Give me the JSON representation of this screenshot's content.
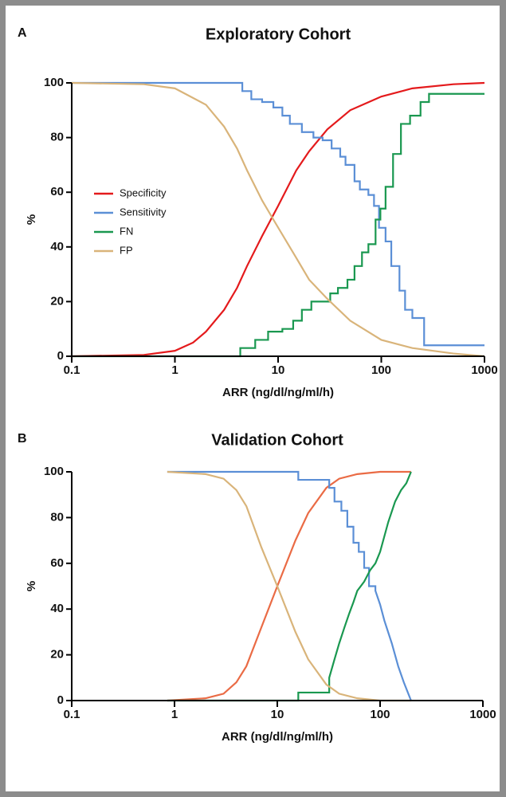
{
  "chart_data": [
    {
      "type": "line",
      "label": "A",
      "title": "Exploratory Cohort",
      "x_label": "ARR (ng/dl/ng/ml/h)",
      "y_label": "%",
      "xlog": true,
      "xlim": [
        0.1,
        1000
      ],
      "ylim": [
        0,
        100
      ],
      "xticks": [
        0.1,
        1,
        10,
        100,
        1000
      ],
      "yticks": [
        0,
        20,
        40,
        60,
        80,
        100
      ],
      "legend": "center-left",
      "series": [
        {
          "name": "Specificity",
          "color": "#e41a1c",
          "x": [
            0.1,
            0.5,
            1,
            1.5,
            2,
            3,
            4,
            5,
            7,
            10,
            15,
            20,
            30,
            50,
            100,
            200,
            500,
            1000
          ],
          "values": [
            0,
            0.5,
            2,
            5,
            9,
            17,
            25,
            33,
            44,
            55,
            68,
            75,
            83,
            90,
            95,
            98,
            99.5,
            100
          ]
        },
        {
          "name": "Sensitivity",
          "color": "#5b8fd6",
          "x": [
            0.1,
            4.5,
            4.5,
            5.5,
            5.5,
            7,
            7,
            9,
            9,
            11,
            11,
            13,
            13,
            17,
            17,
            22,
            22,
            27,
            27,
            33,
            33,
            40,
            40,
            45,
            45,
            55,
            55,
            62,
            62,
            75,
            75,
            85,
            85,
            95,
            95,
            110,
            110,
            125,
            125,
            150,
            150,
            170,
            170,
            200,
            200,
            260,
            260,
            1000
          ],
          "values": [
            100,
            100,
            97,
            97,
            94,
            94,
            93,
            93,
            91,
            91,
            88,
            88,
            85,
            85,
            82,
            82,
            80,
            80,
            79,
            79,
            76,
            76,
            73,
            73,
            70,
            70,
            64,
            64,
            61,
            61,
            59,
            59,
            55,
            55,
            47,
            47,
            42,
            42,
            33,
            33,
            24,
            24,
            17,
            17,
            14,
            14,
            4,
            4
          ]
        },
        {
          "name": "FN",
          "color": "#1a9850",
          "x": [
            0.1,
            4.3,
            4.3,
            6,
            6,
            8,
            8,
            11,
            11,
            14,
            14,
            17,
            17,
            21,
            21,
            32,
            32,
            38,
            38,
            47,
            47,
            55,
            55,
            65,
            65,
            75,
            75,
            88,
            88,
            98,
            98,
            110,
            110,
            130,
            130,
            155,
            155,
            190,
            190,
            240,
            240,
            290,
            290,
            1000
          ],
          "values": [
            0,
            0,
            3,
            3,
            6,
            6,
            9,
            9,
            10,
            10,
            13,
            13,
            17,
            17,
            20,
            20,
            23,
            23,
            25,
            25,
            28,
            28,
            33,
            33,
            38,
            38,
            41,
            41,
            50,
            50,
            54,
            54,
            62,
            62,
            74,
            74,
            85,
            85,
            88,
            88,
            93,
            93,
            96,
            96
          ]
        },
        {
          "name": "FP",
          "color": "#d9b47a",
          "x": [
            0.1,
            0.5,
            1,
            2,
            3,
            4,
            5,
            7,
            9,
            15,
            20,
            30,
            50,
            100,
            200,
            500,
            1000
          ],
          "values": [
            100,
            99.5,
            98,
            92,
            84,
            76,
            68,
            57,
            50,
            36,
            28,
            21,
            13,
            6,
            3,
            1,
            0
          ]
        }
      ]
    },
    {
      "type": "line",
      "label": "B",
      "title": "Validation Cohort",
      "x_label": "ARR (ng/dl/ng/ml/h)",
      "y_label": "%",
      "xlog": true,
      "xlim": [
        0.1,
        1000
      ],
      "ylim": [
        0,
        100
      ],
      "xticks": [
        0.1,
        1,
        10,
        100,
        1000
      ],
      "yticks": [
        0,
        20,
        40,
        60,
        80,
        100
      ],
      "series": [
        {
          "color": "#ea6b45",
          "x": [
            0.85,
            2,
            3,
            4,
            5,
            7,
            10,
            15,
            20,
            30,
            40,
            60,
            100,
            200
          ],
          "values": [
            0,
            1,
            3,
            8,
            15,
            32,
            50,
            70,
            82,
            93,
            97,
            99,
            100,
            100
          ]
        },
        {
          "color": "#5b8fd6",
          "x": [
            0.85,
            16,
            16,
            32,
            32,
            36,
            36,
            42,
            42,
            48,
            48,
            55,
            55,
            62,
            62,
            70,
            70,
            78,
            78,
            90,
            90,
            100,
            110,
            130,
            150,
            170,
            200
          ],
          "values": [
            100,
            100,
            96.5,
            96.5,
            93,
            93,
            87,
            87,
            83,
            83,
            76,
            76,
            69,
            69,
            65,
            65,
            58,
            58,
            50,
            50,
            48,
            42,
            35,
            25,
            15,
            8,
            0
          ]
        },
        {
          "color": "#1a9850",
          "x": [
            0.85,
            16,
            16,
            32,
            32,
            36,
            40,
            45,
            50,
            55,
            60,
            70,
            80,
            90,
            100,
            120,
            140,
            160,
            180,
            200
          ],
          "values": [
            0,
            0,
            3.5,
            3.5,
            10,
            18,
            25,
            32,
            38,
            43,
            48,
            52,
            57,
            60,
            65,
            78,
            87,
            92,
            95,
            100
          ]
        },
        {
          "color": "#d9b47a",
          "x": [
            0.85,
            2,
            3,
            4,
            5,
            7,
            10,
            15,
            20,
            30,
            40,
            60,
            100,
            200
          ],
          "values": [
            100,
            99,
            97,
            92,
            85,
            67,
            50,
            30,
            18,
            7,
            3,
            1,
            0,
            0
          ]
        }
      ]
    }
  ]
}
